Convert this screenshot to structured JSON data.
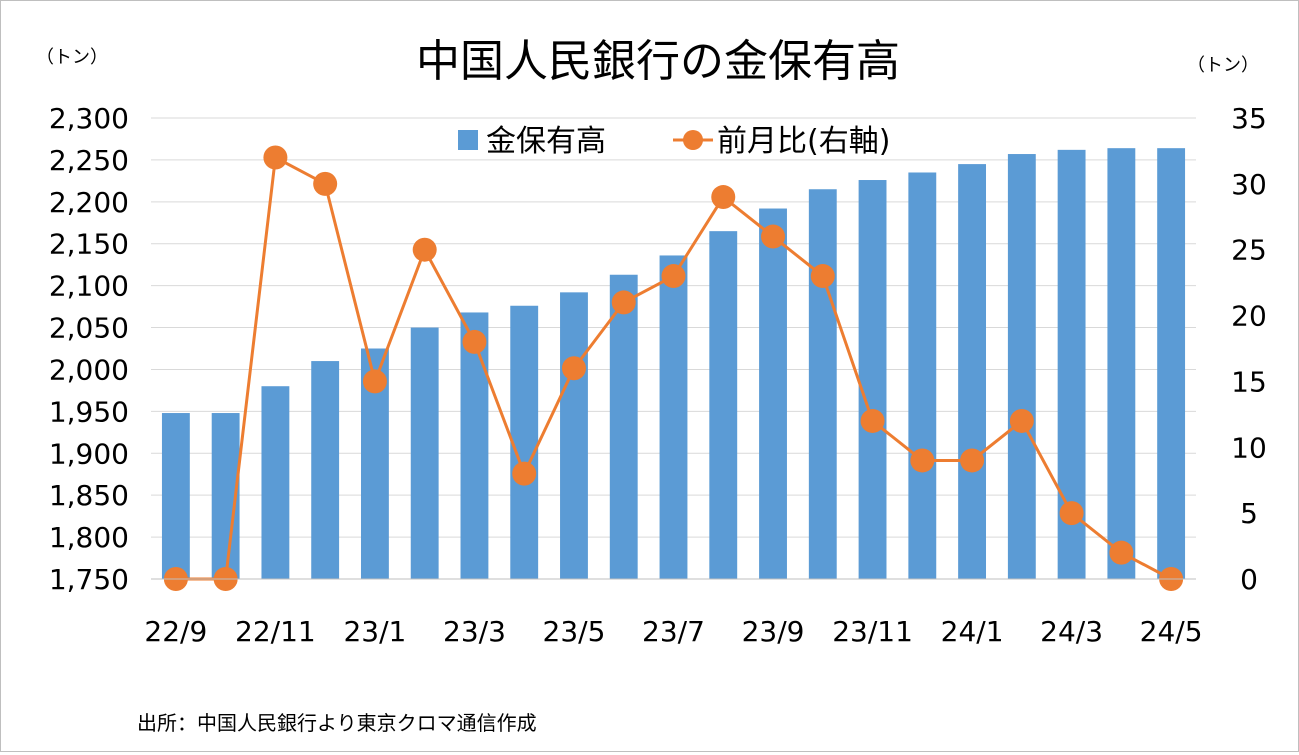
{
  "chart_data": {
    "type": "bar+line",
    "title": "中国人民銀行の金保有高",
    "left_unit": "（トン）",
    "right_unit": "（トン）",
    "source": "出所：中国人民銀行より東京クロマ通信作成",
    "categories": [
      "22/9",
      "22/10",
      "22/11",
      "22/12",
      "23/1",
      "23/2",
      "23/3",
      "23/4",
      "23/5",
      "23/6",
      "23/7",
      "23/8",
      "23/9",
      "23/10",
      "23/11",
      "23/12",
      "24/1",
      "24/2",
      "24/3",
      "24/4",
      "24/5"
    ],
    "x_tick_labels": [
      "22/9",
      "",
      "22/11",
      "",
      "23/1",
      "",
      "23/3",
      "",
      "23/5",
      "",
      "23/7",
      "",
      "23/9",
      "",
      "23/11",
      "",
      "24/1",
      "",
      "24/3",
      "",
      "24/5"
    ],
    "series": [
      {
        "name": "金保有高",
        "type": "bar",
        "axis": "left",
        "color": "#5b9bd5",
        "values": [
          1948,
          1948,
          1980,
          2010,
          2025,
          2050,
          2068,
          2076,
          2092,
          2113,
          2136,
          2165,
          2192,
          2215,
          2226,
          2235,
          2245,
          2257,
          2262,
          2264,
          2264
        ]
      },
      {
        "name": "前月比(右軸)",
        "type": "line",
        "axis": "right",
        "color": "#ed7d31",
        "values": [
          0,
          0,
          32,
          30,
          15,
          25,
          18,
          8,
          16,
          21,
          23,
          29,
          26,
          23,
          12,
          9,
          9,
          12,
          5,
          2,
          0
        ]
      }
    ],
    "left_axis": {
      "min": 1750,
      "max": 2300,
      "step": 50,
      "tick_labels": [
        "1,750",
        "1,800",
        "1,850",
        "1,900",
        "1,950",
        "2,000",
        "2,050",
        "2,100",
        "2,150",
        "2,200",
        "2,250",
        "2,300"
      ]
    },
    "right_axis": {
      "min": 0,
      "max": 35,
      "step": 5,
      "tick_labels": [
        "0",
        "5",
        "10",
        "15",
        "20",
        "25",
        "30",
        "35"
      ]
    },
    "legend": {
      "position": "top-center",
      "entries": [
        "金保有高",
        "前月比(右軸)"
      ]
    },
    "grid": true
  }
}
